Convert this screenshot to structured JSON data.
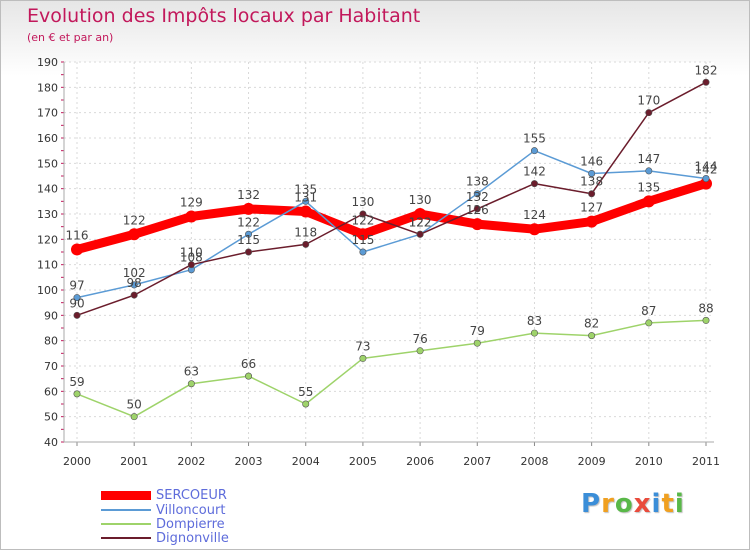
{
  "header": {
    "title": "Evolution des Impôts locaux par Habitant",
    "subtitle": "(en € et par an)"
  },
  "logo": {
    "text": "Proxiti"
  },
  "chart_data": {
    "type": "line",
    "title": "Evolution des Impôts locaux par Habitant",
    "subtitle": "(en € et par an)",
    "xlabel": "",
    "ylabel": "",
    "x": [
      "2000",
      "2001",
      "2002",
      "2003",
      "2004",
      "2005",
      "2006",
      "2007",
      "2008",
      "2009",
      "2010",
      "2011"
    ],
    "ylim": [
      40,
      190
    ],
    "yticks": [
      40,
      50,
      60,
      70,
      80,
      90,
      100,
      110,
      120,
      130,
      140,
      150,
      160,
      170,
      180,
      190
    ],
    "grid": true,
    "legend_position": "bottom-left",
    "series": [
      {
        "name": "SERCOEUR",
        "color": "#ff0000",
        "values": [
          116,
          122,
          129,
          132,
          131,
          122,
          130,
          126,
          124,
          127,
          135,
          142
        ],
        "labels": [
          "116",
          "122",
          "129",
          "132",
          "131",
          "122",
          "130",
          "126",
          "124",
          "127",
          "135",
          "142"
        ]
      },
      {
        "name": "Villoncourt",
        "color": "#5b9bd5",
        "values": [
          97,
          102,
          108,
          122,
          135,
          115,
          122,
          138,
          155,
          146,
          147,
          144
        ],
        "labels": [
          "97",
          "102",
          "108",
          "122",
          "135",
          "115",
          "122",
          "138",
          "155",
          "146",
          "147",
          "144"
        ]
      },
      {
        "name": "Dompierre",
        "color": "#9ed36a",
        "values": [
          59,
          50,
          63,
          66,
          55,
          73,
          76,
          79,
          83,
          82,
          87,
          88
        ],
        "labels": [
          "59",
          "50",
          "63",
          "66",
          "55",
          "73",
          "76",
          "79",
          "83",
          "82",
          "87",
          "88"
        ]
      },
      {
        "name": "Dignonville",
        "color": "#6b1d2c",
        "values": [
          90,
          98,
          110,
          115,
          118,
          130,
          122,
          132,
          142,
          138,
          170,
          182
        ],
        "labels": [
          "90",
          "98",
          "110",
          "115",
          "118",
          "130",
          "122",
          "132",
          "142",
          "138",
          "170",
          "182"
        ]
      }
    ]
  }
}
